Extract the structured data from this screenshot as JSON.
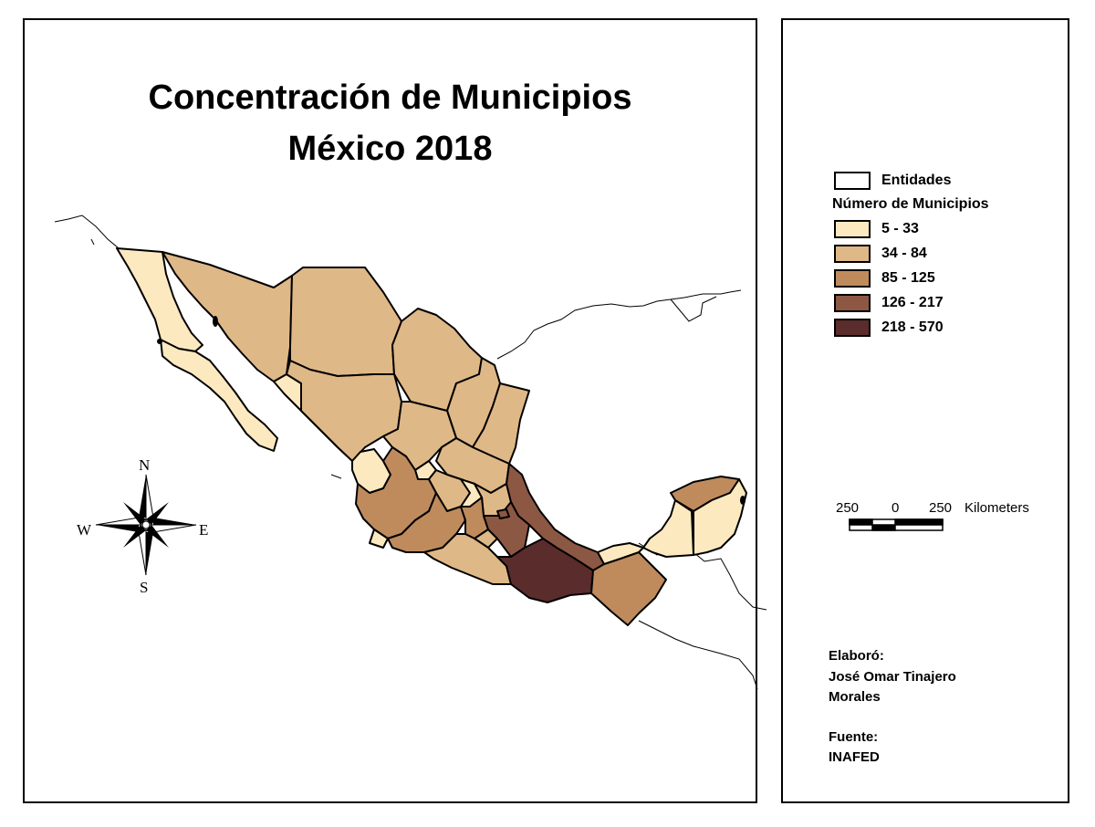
{
  "title": {
    "line1": "Concentración de Municipios",
    "line2": "México 2018"
  },
  "legend": {
    "entity_label": "Entidades",
    "heading": "Número de Municipios",
    "classes": [
      {
        "label": "5 - 33",
        "color": "#fce9c0"
      },
      {
        "label": "34 - 84",
        "color": "#dfb887"
      },
      {
        "label": "85 - 125",
        "color": "#bf8b5d"
      },
      {
        "label": "126 - 217",
        "color": "#8c5843"
      },
      {
        "label": "218 - 570",
        "color": "#5a2c2c"
      }
    ]
  },
  "scale_bar": {
    "left": "250",
    "center": "0",
    "right": "250",
    "unit": "Kilometers"
  },
  "compass": {
    "n": "N",
    "s": "S",
    "e": "E",
    "w": "W"
  },
  "credits": {
    "made_by_label": "Elaboró:",
    "author_line1": "José Omar Tinajero",
    "author_line2": "Morales",
    "source_label": "Fuente:",
    "source": "INAFED"
  }
}
